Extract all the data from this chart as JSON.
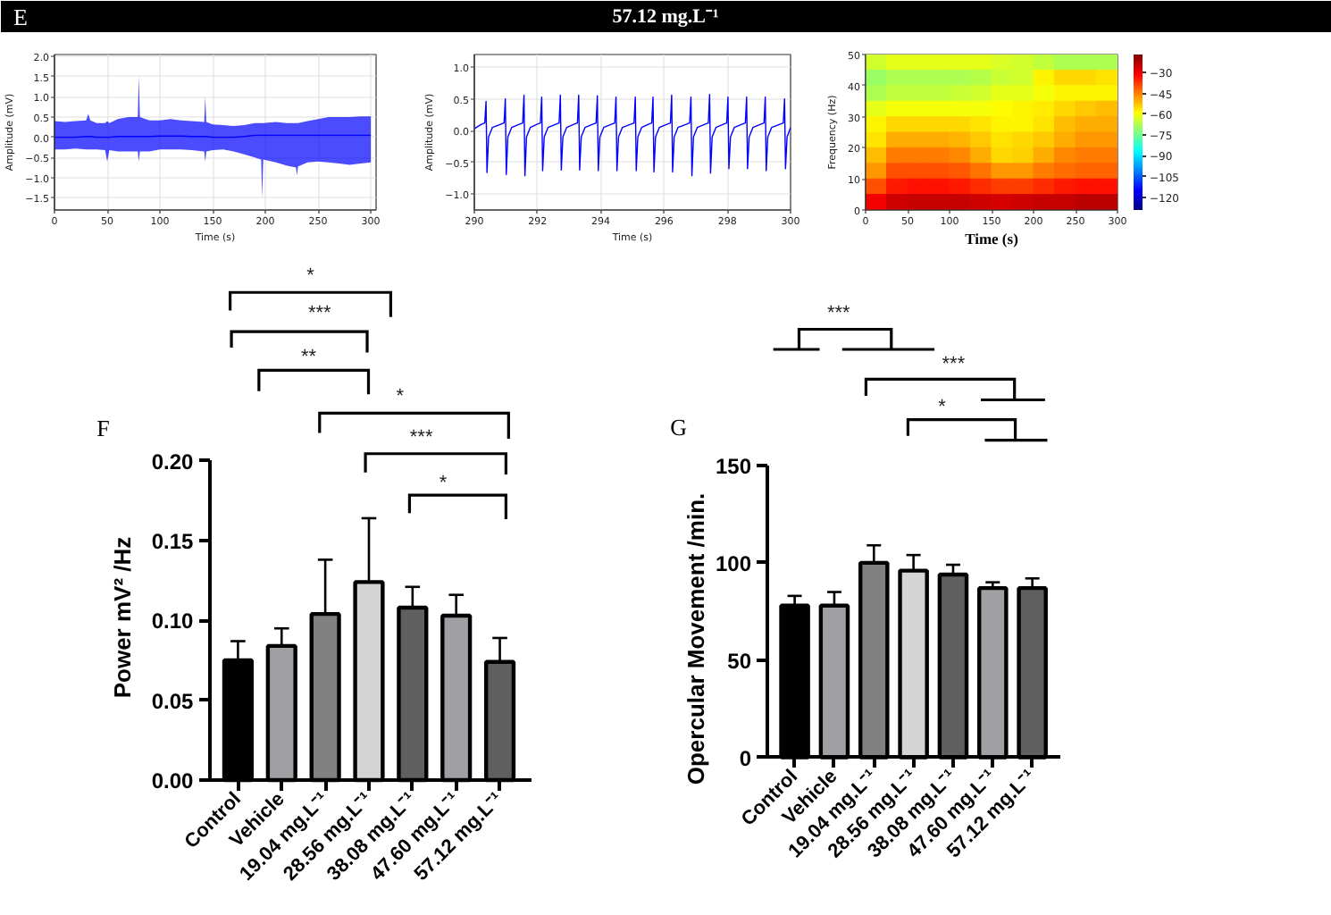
{
  "chart_data": [
    {
      "type": "line",
      "annotations": [
        "E"
      ],
      "xlabel": "Time (s)",
      "ylabel": "Amplitude (mV)",
      "xlim": [
        0,
        305
      ],
      "ylim": [
        -1.8,
        2.05
      ],
      "xticks": [
        0,
        50,
        100,
        150,
        200,
        250,
        300
      ],
      "yticks": [
        {
          "value": -1.5,
          "label": "−1.5"
        },
        {
          "value": -1.0,
          "label": "−1.0"
        },
        {
          "value": -0.5,
          "label": "−0.5"
        },
        {
          "value": 0,
          "label": "0.0"
        },
        {
          "value": 0.5,
          "label": "0.5"
        },
        {
          "value": 1.0,
          "label": "1.0"
        },
        {
          "value": 1.5,
          "label": "1.5"
        },
        {
          "value": 2.0,
          "label": "2.0"
        }
      ],
      "grid": true,
      "series": [
        {
          "color": "#0000ff",
          "x": [
            0,
            10,
            20,
            30,
            32,
            34,
            40,
            48,
            50,
            52,
            60,
            70,
            79,
            80,
            81,
            90,
            100,
            110,
            120,
            130,
            142,
            143,
            144,
            150,
            160,
            170,
            180,
            190,
            196,
            197,
            198,
            210,
            220,
            229,
            230,
            231,
            240,
            250,
            260,
            270,
            280,
            290,
            300
          ],
          "values": [
            0.0,
            0.0,
            0.0,
            0.02,
            0.02,
            0.02,
            0.0,
            0.0,
            0.0,
            0.0,
            0.02,
            0.02,
            0.02,
            0.02,
            0.02,
            0.02,
            0.03,
            0.03,
            0.03,
            0.02,
            0.02,
            0.02,
            0.02,
            0.0,
            0.0,
            0.0,
            0.02,
            0.05,
            0.05,
            0.05,
            0.05,
            0.05,
            0.05,
            0.05,
            0.05,
            0.05,
            0.05,
            0.05,
            0.05,
            0.05,
            0.05,
            0.05,
            0.05
          ],
          "lower": [
            -0.3,
            -0.3,
            -0.28,
            -0.3,
            -0.3,
            -0.3,
            -0.3,
            -0.32,
            -0.6,
            -0.32,
            -0.35,
            -0.35,
            -0.35,
            -0.6,
            -0.35,
            -0.35,
            -0.3,
            -0.3,
            -0.3,
            -0.32,
            -0.35,
            -0.6,
            -0.35,
            -0.32,
            -0.3,
            -0.35,
            -0.42,
            -0.5,
            -0.55,
            -1.5,
            -0.55,
            -0.62,
            -0.7,
            -0.75,
            -0.95,
            -0.72,
            -0.62,
            -0.6,
            -0.62,
            -0.65,
            -0.68,
            -0.65,
            -0.62
          ],
          "upper": [
            0.4,
            0.38,
            0.4,
            0.42,
            0.58,
            0.42,
            0.35,
            0.35,
            0.4,
            0.35,
            0.45,
            0.5,
            0.5,
            1.52,
            0.5,
            0.42,
            0.42,
            0.45,
            0.42,
            0.4,
            0.38,
            1.0,
            0.38,
            0.32,
            0.3,
            0.28,
            0.3,
            0.35,
            0.35,
            0.35,
            0.35,
            0.38,
            0.35,
            0.35,
            0.35,
            0.35,
            0.4,
            0.45,
            0.5,
            0.5,
            0.5,
            0.52,
            0.52
          ]
        }
      ]
    },
    {
      "type": "line",
      "title": "57.12 mg.L⁻¹",
      "xlabel": "Time (s)",
      "ylabel": "Amplitude (mV)",
      "xlim": [
        290,
        300
      ],
      "ylim": [
        -1.25,
        1.2
      ],
      "xticks": [
        290,
        292,
        294,
        296,
        298,
        300
      ],
      "yticks": [
        {
          "value": -1.0,
          "label": "−1.0"
        },
        {
          "value": -0.5,
          "label": "−0.5"
        },
        {
          "value": 0,
          "label": "0.0"
        },
        {
          "value": 0.5,
          "label": "0.5"
        },
        {
          "value": 1.0,
          "label": "1.0"
        }
      ],
      "grid": true,
      "series": [
        {
          "color": "#0000ff",
          "x": [
            290.0,
            290.22,
            290.33,
            290.37,
            290.4,
            290.45,
            290.57,
            290.83,
            290.94,
            290.98,
            291.01,
            291.06,
            291.18,
            291.42,
            291.53,
            291.57,
            291.6,
            291.65,
            291.77,
            291.98,
            292.09,
            292.13,
            292.16,
            292.21,
            292.33,
            292.57,
            292.68,
            292.72,
            292.75,
            292.8,
            292.92,
            293.15,
            293.26,
            293.3,
            293.33,
            293.38,
            293.5,
            293.74,
            293.85,
            293.89,
            293.92,
            293.97,
            294.09,
            294.33,
            294.44,
            294.48,
            294.51,
            294.56,
            294.68,
            294.94,
            295.05,
            295.09,
            295.12,
            295.17,
            295.29,
            295.5,
            295.61,
            295.65,
            295.68,
            295.73,
            295.85,
            296.09,
            296.2,
            296.24,
            296.27,
            296.32,
            296.44,
            296.7,
            296.81,
            296.85,
            296.88,
            296.93,
            297.05,
            297.29,
            297.4,
            297.44,
            297.47,
            297.52,
            297.64,
            297.87,
            297.98,
            298.02,
            298.05,
            298.1,
            298.22,
            298.46,
            298.57,
            298.61,
            298.64,
            298.69,
            298.81,
            299.05,
            299.16,
            299.2,
            299.23,
            299.28,
            299.4,
            299.66,
            299.77,
            299.81,
            299.84,
            299.89,
            300.0
          ],
          "values": [
            0.03,
            0.1,
            0.12,
            0.46,
            -0.66,
            -0.1,
            0.05,
            0.1,
            0.12,
            0.5,
            -0.69,
            -0.1,
            0.05,
            0.1,
            0.12,
            0.56,
            -0.71,
            -0.1,
            0.05,
            0.1,
            0.12,
            0.53,
            -0.63,
            -0.1,
            0.05,
            0.1,
            0.12,
            0.56,
            -0.62,
            -0.1,
            0.05,
            0.1,
            0.12,
            0.56,
            -0.62,
            -0.1,
            0.05,
            0.1,
            0.12,
            0.55,
            -0.63,
            -0.1,
            0.05,
            0.1,
            0.12,
            0.53,
            -0.63,
            -0.1,
            0.05,
            0.1,
            0.12,
            0.53,
            -0.63,
            -0.1,
            0.05,
            0.1,
            0.12,
            0.53,
            -0.65,
            -0.1,
            0.05,
            0.1,
            0.12,
            0.56,
            -0.65,
            -0.1,
            0.05,
            0.1,
            0.12,
            0.53,
            -0.71,
            -0.1,
            0.05,
            0.1,
            0.12,
            0.57,
            -0.67,
            -0.1,
            0.05,
            0.1,
            0.12,
            0.53,
            -0.6,
            -0.1,
            0.05,
            0.1,
            0.12,
            0.53,
            -0.6,
            -0.1,
            0.05,
            0.1,
            0.12,
            0.53,
            -0.63,
            -0.1,
            0.05,
            0.1,
            0.12,
            0.5,
            -0.6,
            -0.1,
            0.05
          ]
        }
      ]
    },
    {
      "type": "heatmap",
      "xlabel": "Time (s)",
      "ylabel": "Frequency (Hz)",
      "x": [
        12.5,
        37.5,
        62.5,
        87.5,
        112.5,
        137.5,
        162.5,
        187.5,
        212.5,
        237.5,
        262.5,
        287.5
      ],
      "xlim": [
        0,
        300
      ],
      "ylim": [
        0,
        50
      ],
      "xticks": [
        0,
        50,
        100,
        150,
        200,
        250,
        300
      ],
      "yticks": [
        0,
        10,
        20,
        30,
        40,
        50
      ],
      "clim": [
        -129,
        -17
      ],
      "cticks": [
        {
          "value": -30,
          "label": "−30"
        },
        {
          "value": -45,
          "label": "−45"
        },
        {
          "value": -60,
          "label": "−60"
        },
        {
          "value": -75,
          "label": "−75"
        },
        {
          "value": -90,
          "label": "−90"
        },
        {
          "value": -105,
          "label": "−105"
        },
        {
          "value": -120,
          "label": "−120"
        }
      ],
      "cells": [
        [
          -64,
          -62,
          -62,
          -62,
          -62,
          -62,
          -63,
          -64,
          -66,
          -68,
          -68,
          -68
        ],
        [
          -70,
          -68,
          -68,
          -68,
          -68,
          -67,
          -65,
          -64,
          -58,
          -55,
          -55,
          -56
        ],
        [
          -68,
          -66,
          -66,
          -66,
          -65,
          -64,
          -62,
          -62,
          -60,
          -58,
          -58,
          -58
        ],
        [
          -62,
          -60,
          -60,
          -60,
          -60,
          -60,
          -59,
          -58,
          -57,
          -55,
          -53,
          -52
        ],
        [
          -58,
          -55,
          -55,
          -55,
          -55,
          -56,
          -58,
          -58,
          -56,
          -52,
          -50,
          -50
        ],
        [
          -56,
          -50,
          -50,
          -50,
          -51,
          -53,
          -56,
          -55,
          -53,
          -50,
          -48,
          -48
        ],
        [
          -52,
          -45,
          -45,
          -45,
          -46,
          -50,
          -55,
          -54,
          -50,
          -46,
          -45,
          -45
        ],
        [
          -48,
          -40,
          -40,
          -40,
          -41,
          -44,
          -48,
          -48,
          -45,
          -43,
          -42,
          -42
        ],
        [
          -40,
          -34,
          -33,
          -33,
          -34,
          -36,
          -38,
          -38,
          -36,
          -34,
          -33,
          -33
        ],
        [
          -30,
          -26,
          -25,
          -25,
          -25,
          -26,
          -27,
          -26,
          -25,
          -25,
          -24,
          -24
        ]
      ]
    },
    {
      "type": "bar",
      "ylabel": "Power mV² /Hz",
      "annotations": [
        "F",
        "*",
        "***",
        "**",
        "*",
        "***",
        "*"
      ],
      "categories": [
        "Control",
        "Vehicle",
        "19.04 mg.L⁻¹",
        "28.56 mg.L⁻¹",
        "38.08 mg.L⁻¹",
        "47.60 mg.L⁻¹",
        "57.12 mg.L⁻¹"
      ],
      "values": [
        0.075,
        0.084,
        0.104,
        0.124,
        0.108,
        0.103,
        0.074
      ],
      "colors": [
        "#000000",
        "#a0a0a4",
        "#808080",
        "#d4d4d4",
        "#5f5f5f",
        "#a0a0a4",
        "#5f5f5f"
      ],
      "errors": [
        [
          0.075,
          0.087
        ],
        [
          0.084,
          0.095
        ],
        [
          0.104,
          0.138
        ],
        [
          0.124,
          0.164
        ],
        [
          0.108,
          0.121
        ],
        [
          0.103,
          0.116
        ],
        [
          0.074,
          0.089
        ]
      ],
      "ylim": [
        0,
        0.2
      ],
      "yticks": [
        {
          "value": 0,
          "label": "0.00"
        },
        {
          "value": 0.05,
          "label": "0.05"
        },
        {
          "value": 0.1,
          "label": "0.10"
        },
        {
          "value": 0.15,
          "label": "0.15"
        },
        {
          "value": 0.2,
          "label": "0.20"
        }
      ]
    },
    {
      "type": "bar",
      "ylabel": "Opercular Movement /min.",
      "annotations": [
        "G",
        "***",
        "***",
        "*"
      ],
      "categories": [
        "Control",
        "Vehicle",
        "19.04 mg.L⁻¹",
        "28.56 mg.L⁻¹",
        "38.08 mg.L⁻¹",
        "47.60 mg.L⁻¹",
        "57.12 mg.L⁻¹"
      ],
      "values": [
        78,
        78,
        100,
        96,
        94,
        87,
        87
      ],
      "colors": [
        "#000000",
        "#a0a0a4",
        "#808080",
        "#d4d4d4",
        "#5f5f5f",
        "#a0a0a4",
        "#5f5f5f"
      ],
      "errors": [
        [
          78,
          83
        ],
        [
          78,
          85
        ],
        [
          100,
          109
        ],
        [
          96,
          104
        ],
        [
          94,
          99
        ],
        [
          87,
          90
        ],
        [
          87,
          92
        ]
      ],
      "ylim": [
        0,
        150
      ],
      "yticks": [
        0,
        50,
        100,
        150
      ]
    }
  ]
}
